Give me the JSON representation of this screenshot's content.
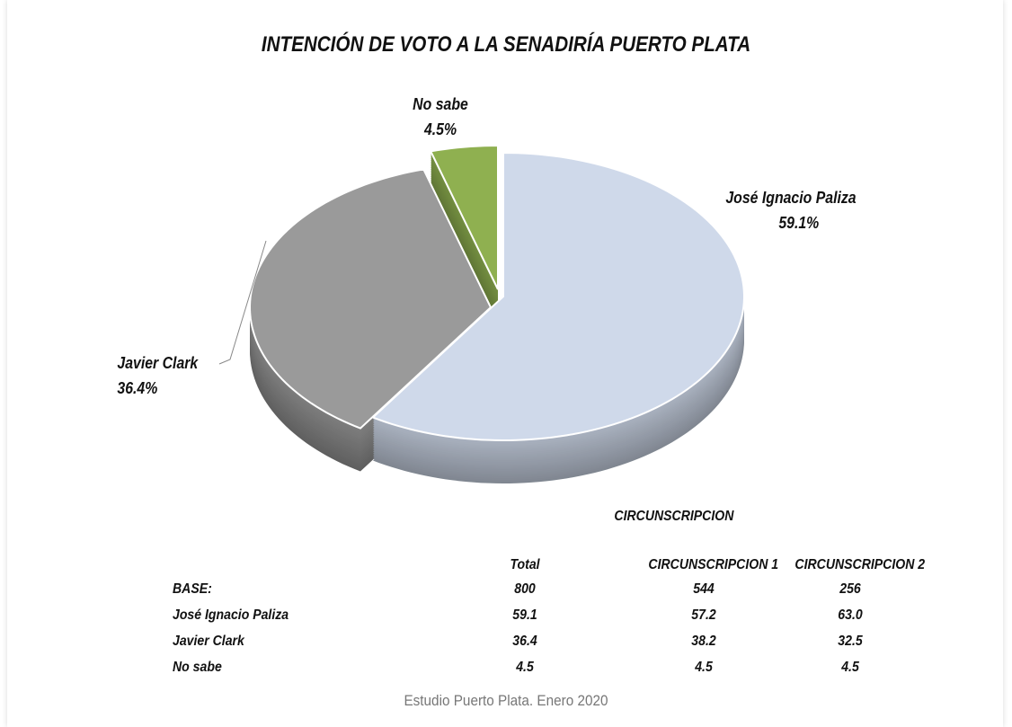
{
  "chart_data": {
    "type": "pie",
    "title": "INTENCIÓN DE VOTO A LA SENADIRÍA PUERTO PLATA",
    "slices": [
      {
        "label": "José Ignacio Paliza",
        "value": 59.1,
        "value_label": "59.1%",
        "color": "#cfd9ea"
      },
      {
        "label": "Javier Clark",
        "value": 36.4,
        "value_label": "36.4%",
        "color": "#9a9a9a"
      },
      {
        "label": "No sabe",
        "value": 4.5,
        "value_label": "4.5%",
        "color": "#8fb050"
      }
    ],
    "style": "3d-exploded-with-photos"
  },
  "table": {
    "group_header": "CIRCUNSCRIPCION",
    "columns": [
      "Total",
      "CIRCUNSCRIPCION 1",
      "CIRCUNSCRIPCION 2"
    ],
    "rows": [
      {
        "label": "BASE:",
        "values": [
          "800",
          "544",
          "256"
        ]
      },
      {
        "label": "José Ignacio Paliza",
        "values": [
          "59.1",
          "57.2",
          "63.0"
        ]
      },
      {
        "label": "Javier Clark",
        "values": [
          "36.4",
          "38.2",
          "32.5"
        ]
      },
      {
        "label": "No sabe",
        "values": [
          "4.5",
          "4.5",
          "4.5"
        ]
      }
    ]
  },
  "source": "Estudio Puerto Plata. Enero 2020"
}
